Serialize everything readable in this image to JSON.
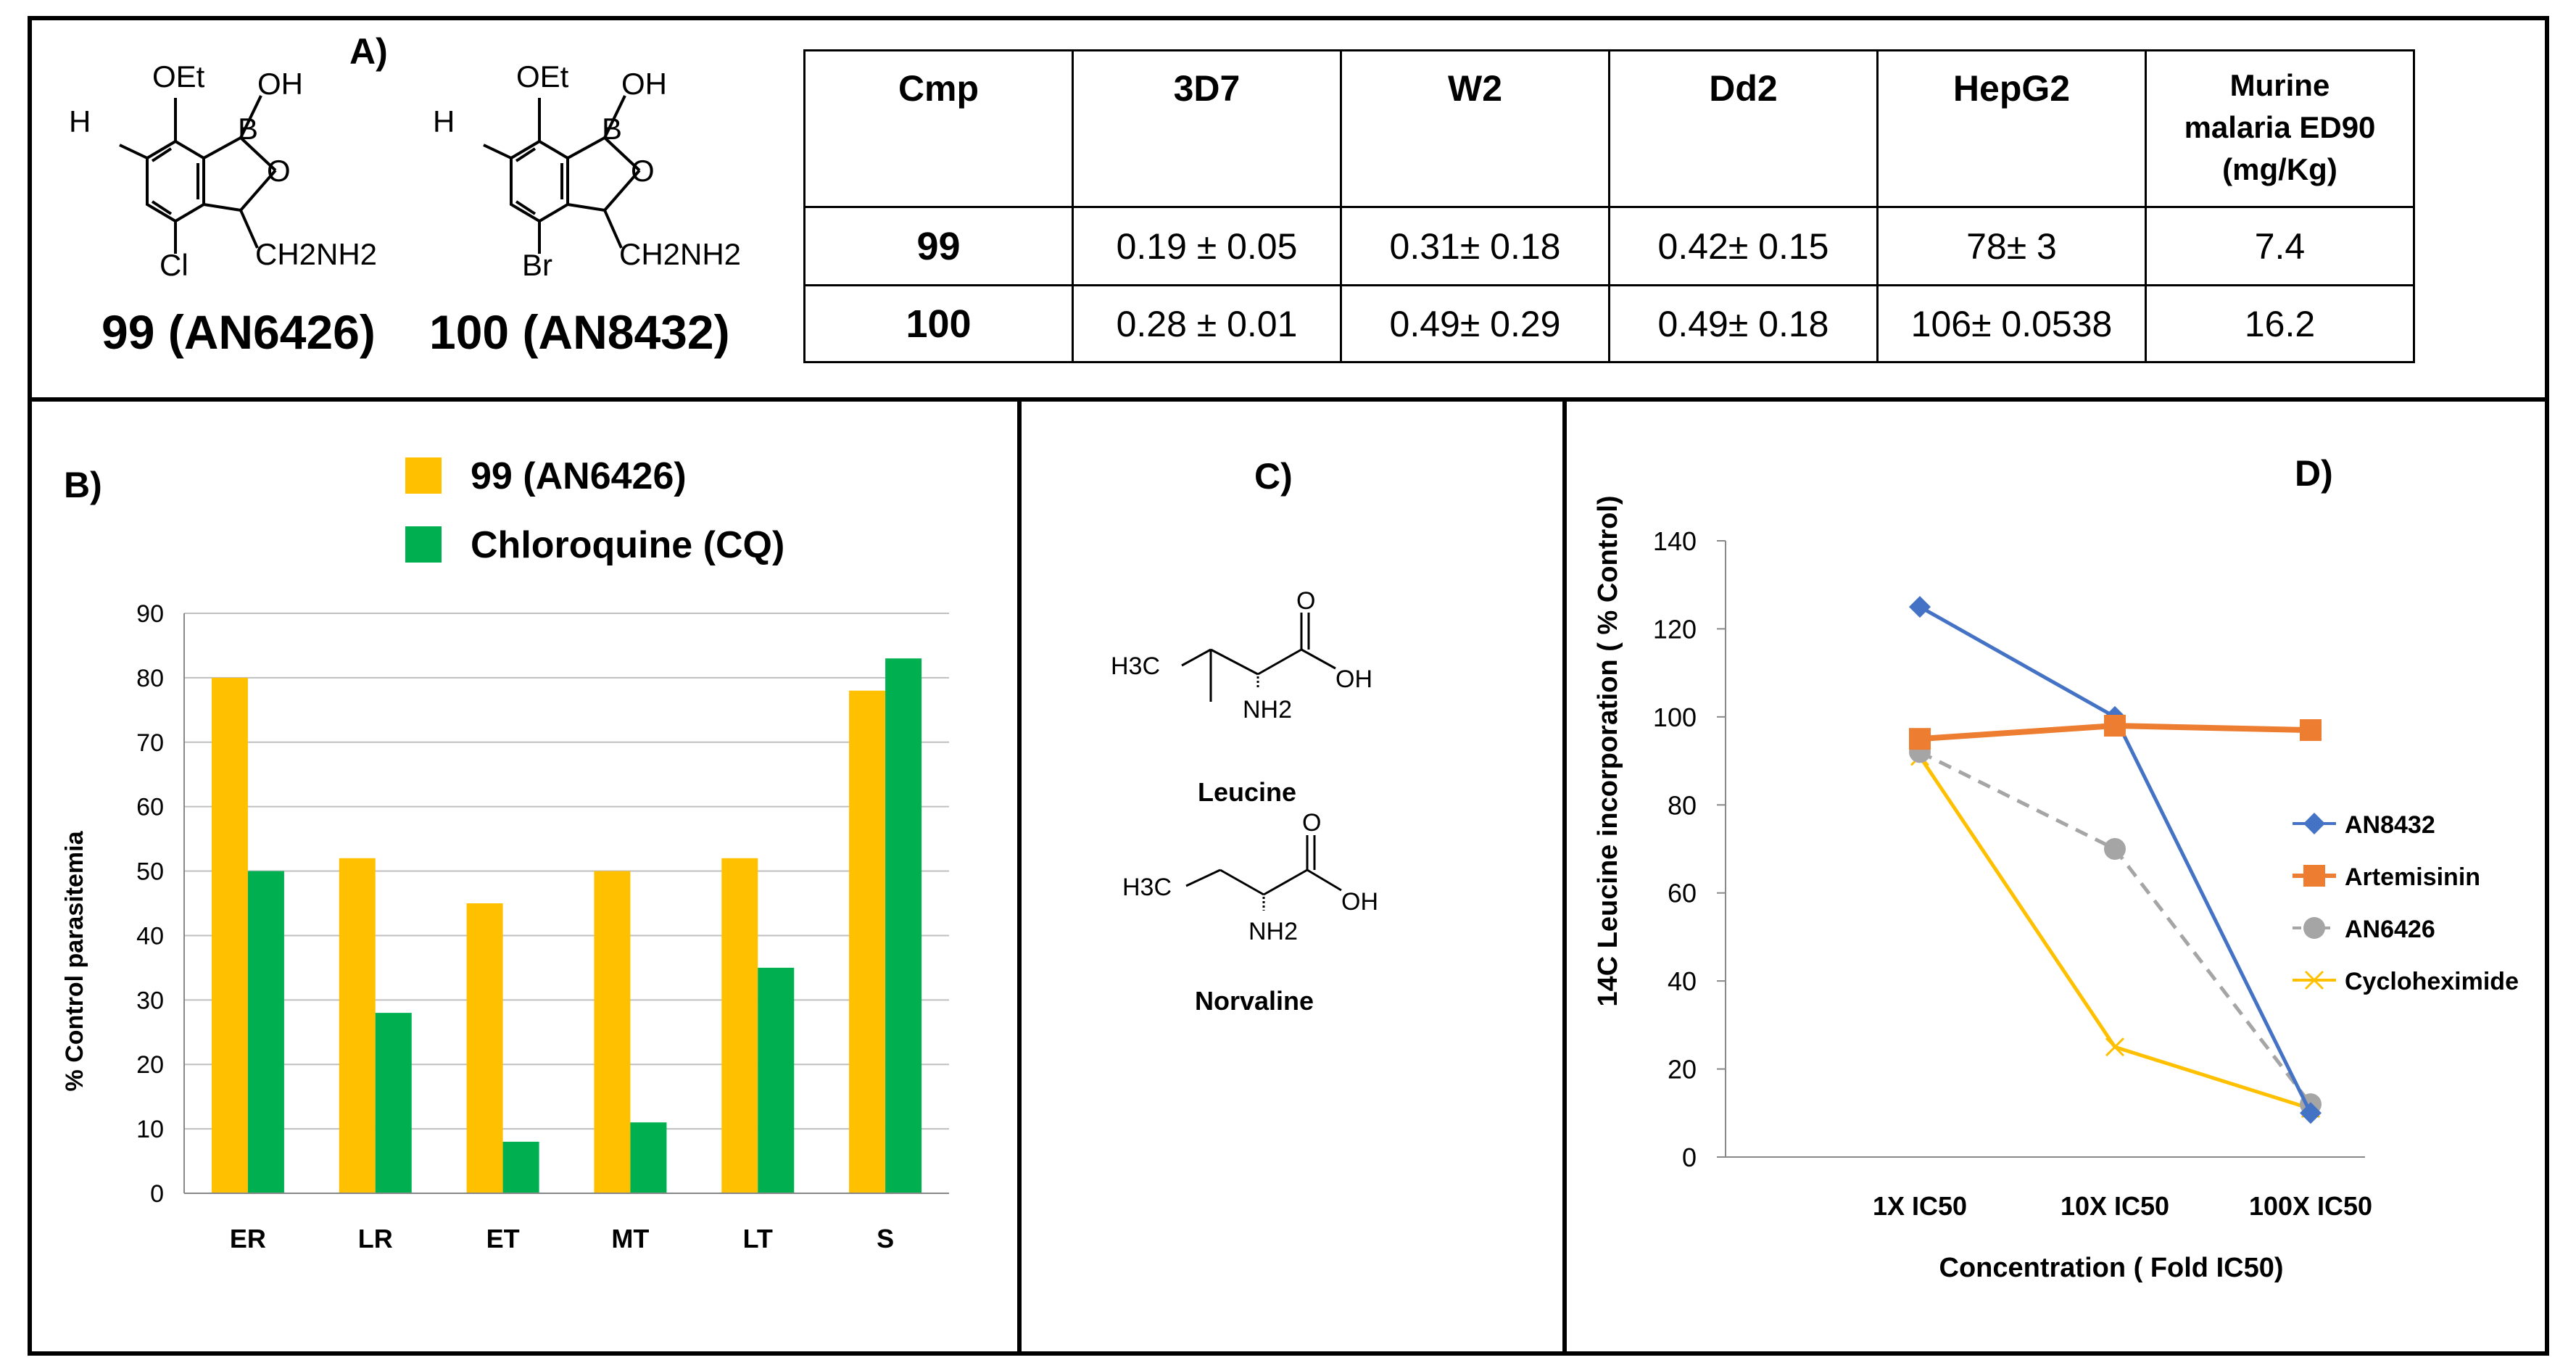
{
  "panel_labels": {
    "a": "A)",
    "b": "B)",
    "c": "C)",
    "d": "D)"
  },
  "molecules": {
    "m99": {
      "name": "99 (AN6426)",
      "oet": "OEt",
      "oh": "OH",
      "b": "B",
      "o": "O",
      "h": "H",
      "halogen": "Cl",
      "ch2nh2": "CH2NH2"
    },
    "m100": {
      "name": "100 (AN8432)",
      "oet": "OEt",
      "oh": "OH",
      "b": "B",
      "o": "O",
      "h": "H",
      "halogen": "Br",
      "ch2nh2": "CH2NH2"
    }
  },
  "table": {
    "headers": [
      "Cmp",
      "3D7",
      "W2",
      "Dd2",
      "HepG2"
    ],
    "murine_header": [
      "Murine",
      "malaria ED90",
      "(mg/Kg)"
    ],
    "rows": [
      [
        "99",
        "0.19 ± 0.05",
        "0.31± 0.18",
        "0.42± 0.15",
        "78± 3",
        "7.4"
      ],
      [
        "100",
        "0.28 ± 0.01",
        "0.49± 0.29",
        "0.49± 0.18",
        "106± 0.0538",
        "16.2"
      ]
    ]
  },
  "amino_acids": {
    "leucine": {
      "name": "Leucine",
      "h3c": "H3C",
      "o": "O",
      "oh": "OH",
      "nh2": "NH2"
    },
    "norvaline": {
      "name": "Norvaline",
      "h3c": "H3C",
      "o": "O",
      "oh": "OH",
      "nh2": "NH2"
    }
  },
  "chart_data": [
    {
      "type": "bar",
      "title": "",
      "xlabel": "",
      "ylabel": "% Control  parasitemia",
      "ylim": [
        0,
        90
      ],
      "yticks": [
        0,
        10,
        20,
        30,
        40,
        50,
        60,
        70,
        80,
        90
      ],
      "grid": true,
      "legend_position": "top",
      "categories": [
        "ER",
        "LR",
        "ET",
        "MT",
        "LT",
        "S"
      ],
      "series": [
        {
          "name": "99 (AN6426)",
          "color": "#FFC000",
          "values": [
            80,
            52,
            45,
            50,
            52,
            78
          ]
        },
        {
          "name": "Chloroquine (CQ)",
          "color": "#00B050",
          "values": [
            50,
            28,
            8,
            11,
            35,
            83
          ]
        }
      ]
    },
    {
      "type": "line",
      "title": "",
      "xlabel": "Concentration ( Fold IC50)",
      "ylabel": "14C Leucine  incorporation ( % Control)",
      "ylim": [
        0,
        140
      ],
      "yticks": [
        0,
        20,
        40,
        60,
        80,
        100,
        120,
        140
      ],
      "grid": false,
      "legend_position": "right",
      "categories": [
        "1X IC50",
        "10X IC50",
        "100X IC50"
      ],
      "series": [
        {
          "name": "AN8432",
          "color": "#4472C4",
          "marker": "diamond",
          "dashed": false,
          "values": [
            125,
            100,
            10
          ]
        },
        {
          "name": "Artemisinin",
          "color": "#ED7D31",
          "marker": "square",
          "dashed": false,
          "values": [
            95,
            98,
            97
          ]
        },
        {
          "name": "AN6426",
          "color": "#A5A5A5",
          "marker": "circle",
          "dashed": true,
          "values": [
            92,
            70,
            12
          ]
        },
        {
          "name": "Cycloheximide",
          "color": "#FFC000",
          "marker": "x",
          "dashed": false,
          "values": [
            91,
            25,
            11
          ]
        }
      ]
    }
  ]
}
